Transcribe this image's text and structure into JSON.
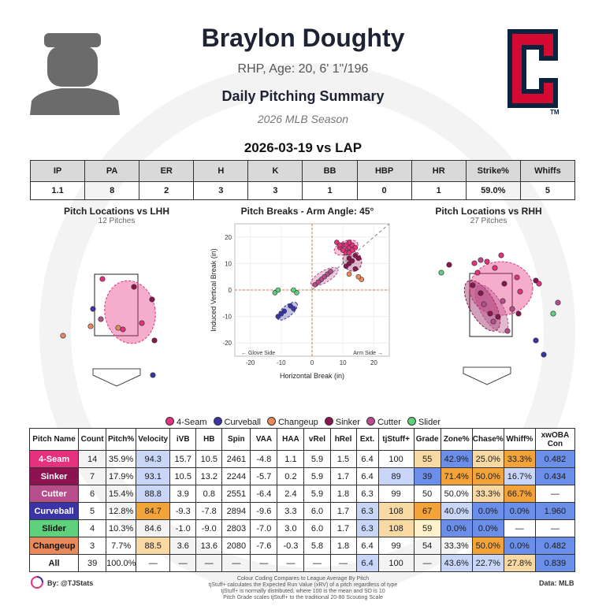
{
  "header": {
    "name": "Braylon Doughty",
    "info": "RHP, Age: 20, 6' 1\"/196",
    "report": "Daily Pitching Summary",
    "season": "2026 MLB Season",
    "game": "2026-03-19 vs LAP",
    "logo_letter": "C",
    "logo_tm": "TM"
  },
  "colors": {
    "4-Seam": "#e6317e",
    "Sinker": "#8b1450",
    "Cutter": "#b84d8b",
    "Curveball": "#3a35a6",
    "Slider": "#5fd07c",
    "Changeup": "#e98a5d",
    "logo_red": "#d50a32",
    "logo_navy": "#0c2340"
  },
  "line": {
    "headers": [
      "IP",
      "PA",
      "ER",
      "H",
      "K",
      "BB",
      "HBP",
      "HR",
      "Strike%",
      "Whiffs"
    ],
    "values": [
      "1.1",
      "8",
      "2",
      "3",
      "3",
      "1",
      "0",
      "1",
      "59.0%",
      "5"
    ]
  },
  "panels": {
    "lhh_title": "Pitch Locations vs LHH",
    "lhh_sub": "12 Pitches",
    "rhh_title": "Pitch Locations vs RHH",
    "rhh_sub": "27 Pitches",
    "break_title": "Pitch Breaks - Arm Angle: 45°",
    "glove_side": "← Glove Side",
    "arm_side": "Arm Side →"
  },
  "legend": [
    "4-Seam",
    "Curveball",
    "Changeup",
    "Sinker",
    "Cutter",
    "Slider"
  ],
  "chart_data": {
    "type": "scatter",
    "title": "Pitch Breaks - Arm Angle: 45°",
    "xlabel": "Horizontal Break (in)",
    "ylabel": "Induced Vertical Break (in)",
    "xlim": [
      -25,
      25
    ],
    "ylim": [
      -25,
      25
    ],
    "xticks": [
      -20,
      -10,
      0,
      10,
      20
    ],
    "yticks": [
      -20,
      -10,
      0,
      10,
      20
    ],
    "grid": true,
    "series": [
      {
        "name": "4-Seam",
        "points": [
          [
            8,
            18
          ],
          [
            9,
            16
          ],
          [
            10,
            17
          ],
          [
            11,
            15
          ],
          [
            12,
            16
          ],
          [
            13,
            17
          ],
          [
            11,
            14
          ],
          [
            14,
            16
          ],
          [
            10,
            15
          ],
          [
            12,
            18
          ],
          [
            9,
            17
          ],
          [
            13,
            15
          ],
          [
            11,
            17
          ],
          [
            12,
            14
          ]
        ]
      },
      {
        "name": "Sinker",
        "points": [
          [
            12,
            10
          ],
          [
            14,
            8
          ],
          [
            13,
            11
          ],
          [
            15,
            12
          ],
          [
            11,
            9
          ],
          [
            14,
            13
          ],
          [
            12,
            12
          ]
        ]
      },
      {
        "name": "Cutter",
        "points": [
          [
            1,
            2
          ],
          [
            3,
            4
          ],
          [
            5,
            6
          ],
          [
            4,
            5
          ],
          [
            6,
            7
          ],
          [
            2,
            3
          ]
        ]
      },
      {
        "name": "Curveball",
        "points": [
          [
            -11,
            -10
          ],
          [
            -9,
            -8
          ],
          [
            -7,
            -6
          ],
          [
            -10,
            -9
          ],
          [
            -6,
            -7
          ]
        ]
      },
      {
        "name": "Slider",
        "points": [
          [
            -12,
            -1
          ],
          [
            -11,
            0
          ],
          [
            -5,
            -1
          ],
          [
            -6,
            0
          ]
        ]
      },
      {
        "name": "Changeup",
        "points": [
          [
            12,
            6
          ],
          [
            16,
            4
          ],
          [
            15,
            5
          ]
        ]
      }
    ]
  },
  "pitch_table": {
    "headers": [
      "Pitch Name",
      "Count",
      "Pitch%",
      "Velocity",
      "iVB",
      "HB",
      "Spin",
      "VAA",
      "HAA",
      "vRel",
      "hRel",
      "Ext.",
      "tjStuff+",
      "Grade",
      "Zone%",
      "Chase%",
      "Whiff%",
      "xwOBA Con"
    ],
    "rows": [
      {
        "name": "4-Seam",
        "key": "4-Seam",
        "cells": [
          "14",
          "35.9%",
          "94.3",
          "15.7",
          "10.5",
          "2461",
          "-4.8",
          "1.1",
          "5.9",
          "1.5",
          "6.4",
          "100",
          "55",
          "42.9%",
          "25.0%",
          "33.3%",
          "0.482"
        ]
      },
      {
        "name": "Sinker",
        "key": "Sinker",
        "cells": [
          "7",
          "17.9%",
          "93.1",
          "10.5",
          "13.2",
          "2244",
          "-5.7",
          "0.2",
          "5.9",
          "1.7",
          "6.4",
          "89",
          "39",
          "71.4%",
          "50.0%",
          "16.7%",
          "0.434"
        ]
      },
      {
        "name": "Cutter",
        "key": "Cutter",
        "cells": [
          "6",
          "15.4%",
          "88.8",
          "3.9",
          "0.8",
          "2551",
          "-6.4",
          "2.4",
          "5.9",
          "1.8",
          "6.3",
          "99",
          "50",
          "50.0%",
          "33.3%",
          "66.7%",
          "—"
        ]
      },
      {
        "name": "Curveball",
        "key": "Curveball",
        "cells": [
          "5",
          "12.8%",
          "84.7",
          "-9.3",
          "-7.8",
          "2894",
          "-9.6",
          "3.3",
          "6.0",
          "1.7",
          "6.3",
          "108",
          "67",
          "40.0%",
          "0.0%",
          "0.0%",
          "1.960"
        ]
      },
      {
        "name": "Slider",
        "key": "Slider",
        "cells": [
          "4",
          "10.3%",
          "84.6",
          "-1.0",
          "-9.0",
          "2803",
          "-7.0",
          "3.0",
          "6.0",
          "1.7",
          "6.3",
          "108",
          "59",
          "0.0%",
          "0.0%",
          "—",
          "—"
        ]
      },
      {
        "name": "Changeup",
        "key": "Changeup",
        "cells": [
          "3",
          "7.7%",
          "88.5",
          "3.6",
          "13.6",
          "2080",
          "-7.6",
          "-0.3",
          "5.8",
          "1.8",
          "6.4",
          "99",
          "54",
          "33.3%",
          "50.0%",
          "0.0%",
          "0.482"
        ]
      },
      {
        "name": "All",
        "key": "All",
        "cells": [
          "39",
          "100.0%",
          "—",
          "—",
          "—",
          "—",
          "—",
          "—",
          "—",
          "—",
          "6.4",
          "100",
          "—",
          "43.6%",
          "22.7%",
          "27.8%",
          "0.839"
        ]
      }
    ]
  },
  "footer": {
    "byline": "By: @TJStats",
    "data": "Data: MLB",
    "notes": [
      "Colour Coding Compares to League Average By Pitch",
      "tjStuff+ calculates the Expected Run Value (xRV) of a pitch regardless of type",
      "tjStuff+ is normally distributed, where 100 is the mean and SD is 10",
      "Pitch Grade scales tjStuff+ to the traditional 20-80 Scouting Scale"
    ]
  }
}
